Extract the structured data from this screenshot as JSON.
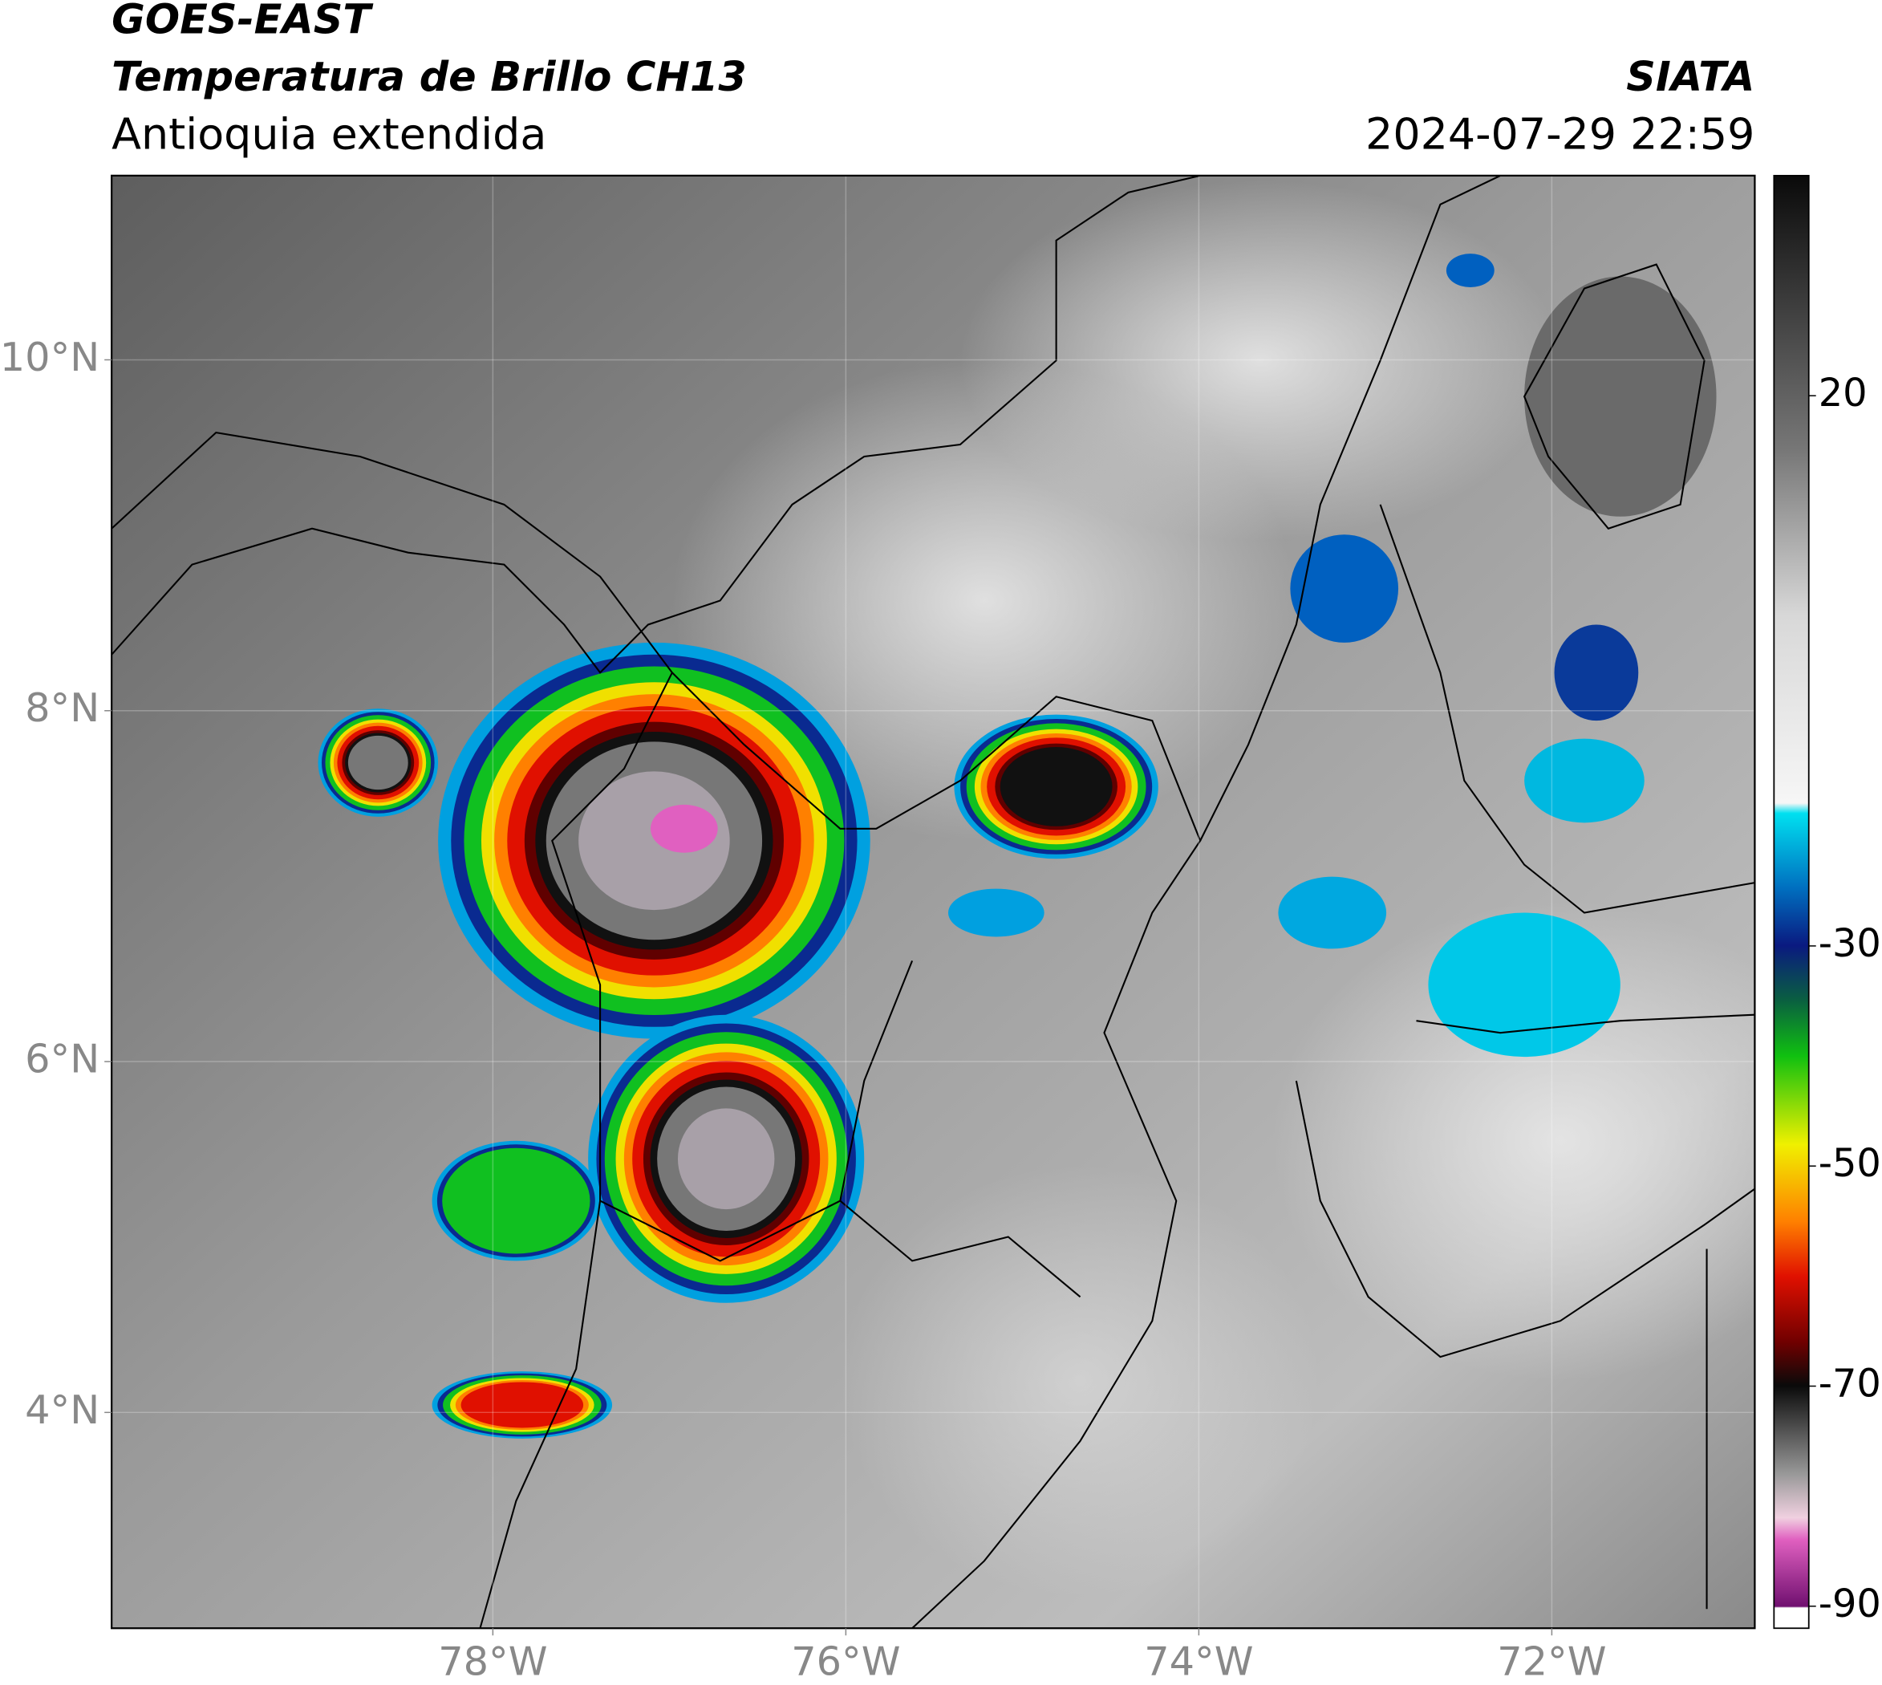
{
  "chart_data": {
    "type": "map",
    "title": "GOES-EAST",
    "subtitle": "Temperatura de Brillo CH13",
    "region": "Antioquia extendida",
    "source": "SIATA",
    "date": "2024-07-29 22:59",
    "xlim": [
      -80.16,
      -70.85
    ],
    "ylim": [
      2.77,
      11.05
    ],
    "xticks": [
      {
        "value": -78,
        "label": "78°W"
      },
      {
        "value": -76,
        "label": "76°W"
      },
      {
        "value": -74,
        "label": "74°W"
      },
      {
        "value": -72,
        "label": "72°W"
      }
    ],
    "yticks": [
      {
        "value": 4,
        "label": "4°N"
      },
      {
        "value": 6,
        "label": "6°N"
      },
      {
        "value": 8,
        "label": "8°N"
      },
      {
        "value": 10,
        "label": "10°N"
      }
    ],
    "grid": true,
    "colorbar": {
      "lim": [
        -92,
        40
      ],
      "ticks": [
        20,
        -30,
        -50,
        -70,
        -90
      ]
    }
  }
}
